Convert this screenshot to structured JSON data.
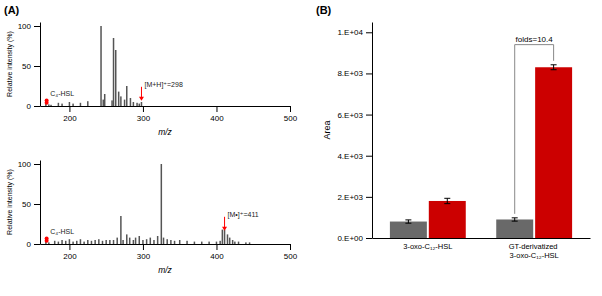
{
  "chart_data": [
    {
      "type": "bar",
      "title": "(A)",
      "x": [
        168,
        172,
        175,
        185,
        190,
        200,
        205,
        215,
        225,
        243,
        246,
        248,
        258,
        260,
        263,
        267,
        270,
        275,
        278,
        283,
        287,
        292,
        295,
        298
      ],
      "values": [
        3,
        2,
        1.5,
        4,
        3,
        5,
        3,
        4,
        6,
        100,
        8,
        15,
        7,
        85,
        70,
        18,
        12,
        8,
        25,
        10,
        5,
        4,
        3,
        5
      ],
      "color": "#555555",
      "xlabel": "m/z",
      "ylabel": "Relative intensity (%)",
      "xlim": [
        160,
        500
      ],
      "ylim": [
        0,
        105
      ],
      "xticks": [
        200,
        300,
        400,
        500
      ],
      "yticks": [
        0,
        50,
        100
      ],
      "annotations": [
        {
          "text": "C₄-HSL",
          "x": 174,
          "y": 13,
          "color": "red",
          "points": {
            "x": [
              169,
              169
            ],
            "y": [
              7,
              4
            ]
          }
        },
        {
          "text": "[M+H]⁺=298",
          "x": 298,
          "y": 4,
          "color": "red"
        }
      ]
    },
    {
      "type": "bar",
      "x": [
        168,
        172,
        180,
        185,
        190,
        195,
        200,
        205,
        210,
        215,
        220,
        225,
        230,
        235,
        240,
        245,
        250,
        255,
        260,
        265,
        270,
        273,
        278,
        282,
        287,
        290,
        295,
        300,
        305,
        310,
        315,
        320,
        325,
        328,
        333,
        338,
        343,
        350,
        360,
        370,
        380,
        390,
        400,
        405,
        408,
        411,
        415,
        418,
        422,
        425,
        430,
        440,
        445
      ],
      "values": [
        3,
        2,
        4,
        3,
        5,
        4,
        6,
        3,
        4,
        6,
        3,
        5,
        4,
        5,
        6,
        4,
        5,
        5,
        5,
        8,
        35,
        5,
        12,
        8,
        5,
        8,
        10,
        5,
        6,
        8,
        5,
        10,
        100,
        8,
        6,
        5,
        4,
        5,
        4,
        3,
        3,
        3,
        3,
        4,
        18,
        18,
        12,
        8,
        5,
        3,
        3,
        2,
        2
      ],
      "color": "#555555",
      "xlabel": "m/z",
      "ylabel": "Relative intensity (%)",
      "xlim": [
        160,
        500
      ],
      "ylim": [
        0,
        105
      ],
      "xticks": [
        200,
        300,
        400,
        500
      ],
      "yticks": [
        0,
        50,
        100
      ],
      "annotations": [
        {
          "text": "C₄-HSL",
          "x": 174,
          "y": 13,
          "color": "red",
          "points": {
            "x": [
              169,
              169
            ],
            "y": [
              7,
              4
            ]
          }
        },
        {
          "text": "[M•]⁺=411",
          "x": 411,
          "y": 14,
          "color": "red"
        }
      ]
    },
    {
      "type": "bar",
      "title": "(B)",
      "categories": [
        "3-oxo-C₁₂-HSL",
        "GT-derivatized 3-oxo-C₁₂-HSL"
      ],
      "series": [
        {
          "color": "#696969",
          "values": [
            800,
            900
          ],
          "errors": [
            80,
            80
          ]
        },
        {
          "color": "#CC0000",
          "values": [
            1800,
            8300
          ],
          "errors": [
            130,
            120
          ]
        }
      ],
      "ylabel": "Area",
      "ylim": [
        0,
        10500
      ],
      "yticks": [
        {
          "value": 0,
          "label": "0.E+00"
        },
        {
          "value": 2000,
          "label": "2.E+03"
        },
        {
          "value": 4000,
          "label": "4.E+03"
        },
        {
          "value": 6000,
          "label": "6.E+03"
        },
        {
          "value": 8000,
          "label": "8.E+03"
        },
        {
          "value": 10000,
          "label": "1.E+04"
        }
      ],
      "annotations": [
        {
          "text": "folds=10.4",
          "y": 9400,
          "category": 1
        }
      ]
    }
  ]
}
